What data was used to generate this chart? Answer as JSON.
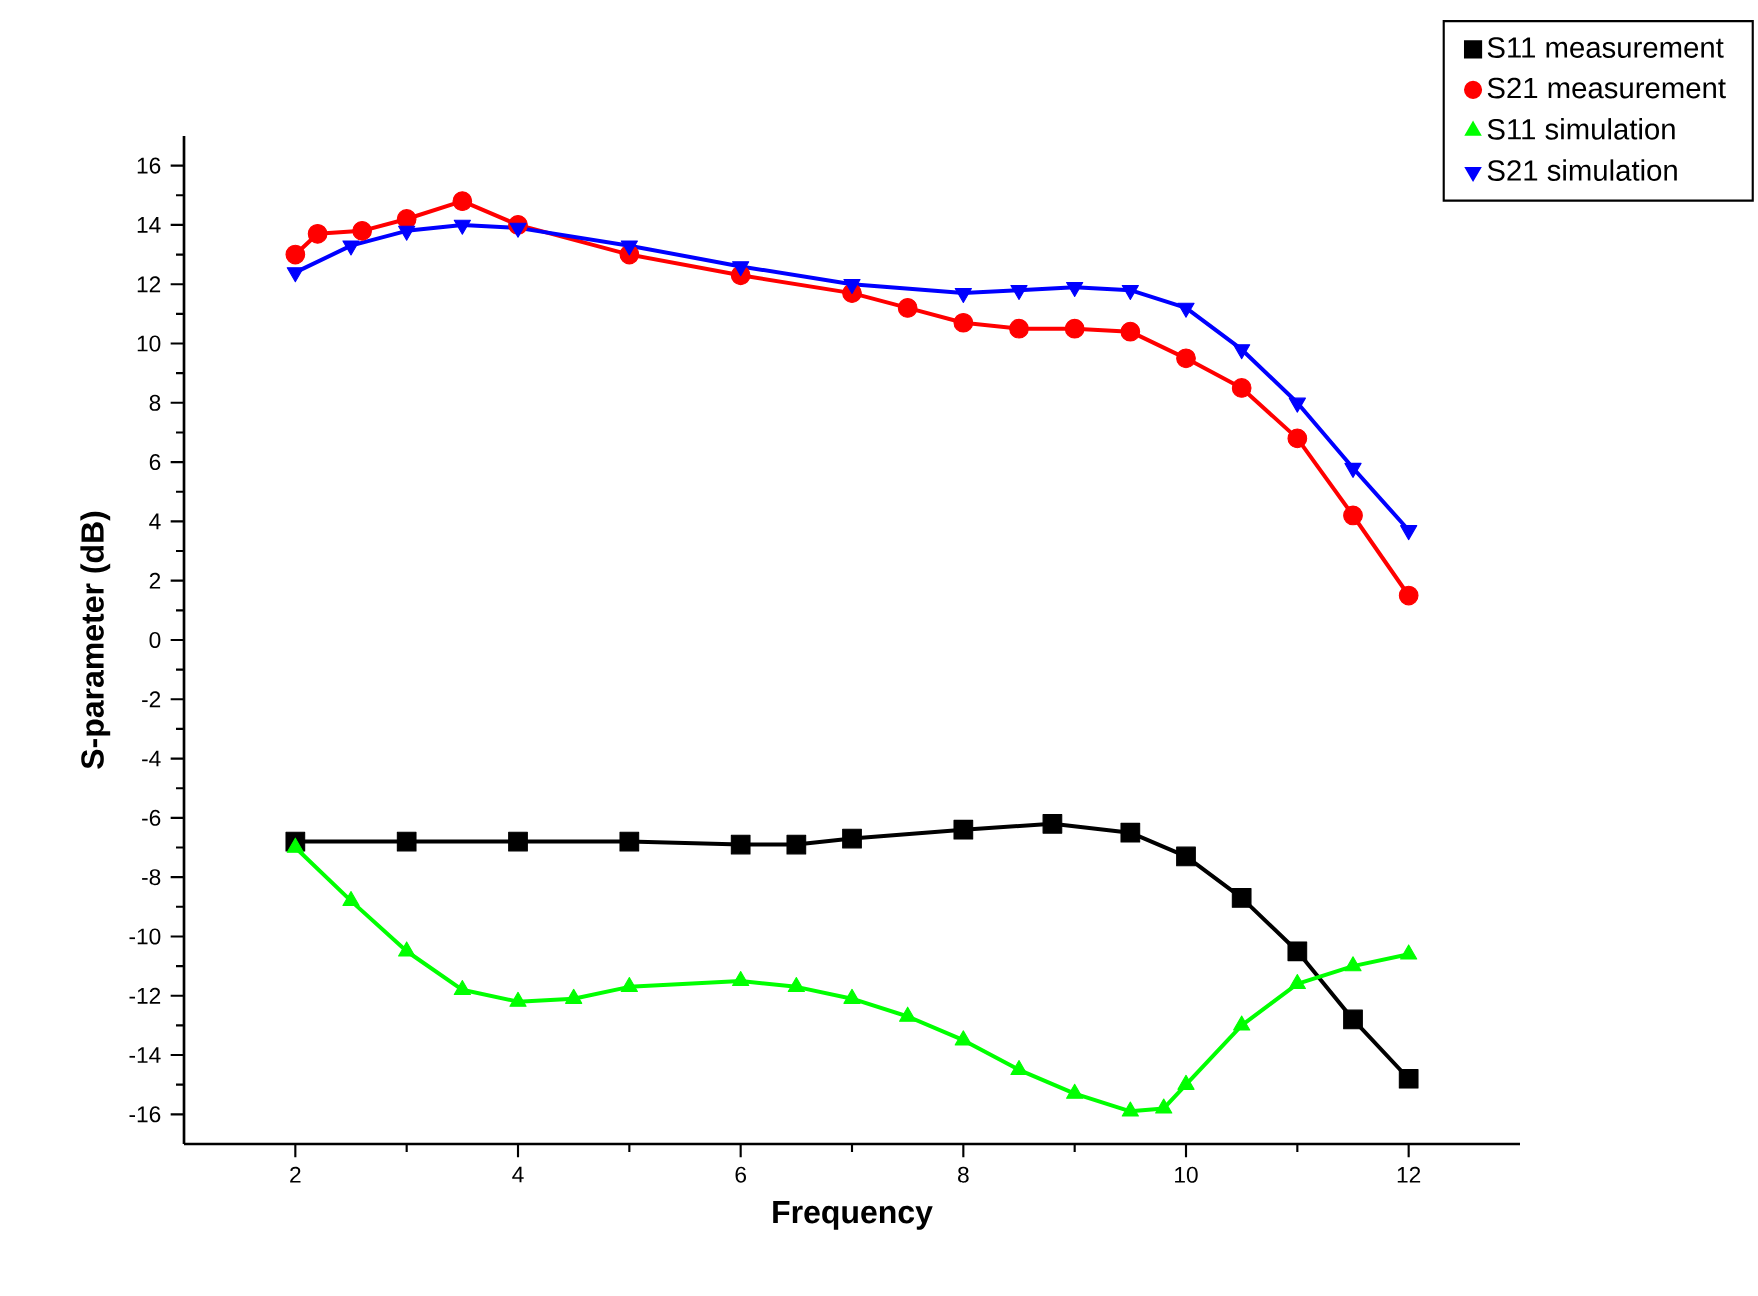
{
  "chart_data": {
    "type": "line",
    "xlabel": "Frequency",
    "ylabel": "S-parameter (dB)",
    "xlim": [
      1,
      13
    ],
    "ylim": [
      -17,
      17
    ],
    "xticks": [
      2,
      4,
      6,
      8,
      10,
      12
    ],
    "yticks": [
      -16,
      -14,
      -12,
      -10,
      -8,
      -6,
      -4,
      -2,
      0,
      2,
      4,
      6,
      8,
      10,
      12,
      14,
      16
    ],
    "grid": false,
    "legend": "top right",
    "series": [
      {
        "name": "S11 measurement",
        "color": "#000000",
        "marker": "square",
        "x": [
          2,
          3,
          4,
          5,
          6,
          6.5,
          7,
          8,
          8.8,
          9.5,
          10,
          10.5,
          11,
          11.5,
          12
        ],
        "values": [
          -6.8,
          -6.8,
          -6.8,
          -6.8,
          -6.9,
          -6.9,
          -6.7,
          -6.4,
          -6.2,
          -6.5,
          -7.3,
          -8.7,
          -10.5,
          -12.8,
          -14.8
        ]
      },
      {
        "name": "S21 measurement",
        "color": "#ff0000",
        "marker": "circle",
        "x": [
          2,
          2.2,
          2.6,
          3,
          3.5,
          4,
          5,
          6,
          7,
          7.5,
          8,
          8.5,
          9,
          9.5,
          10,
          10.5,
          11,
          11.5,
          12
        ],
        "values": [
          13,
          13.7,
          13.8,
          14.2,
          14.8,
          14.0,
          13.0,
          12.3,
          11.7,
          11.2,
          10.7,
          10.5,
          10.5,
          10.4,
          9.5,
          8.5,
          6.8,
          4.2,
          1.5
        ]
      },
      {
        "name": "S11 simulation",
        "color": "#00ff00",
        "marker": "triangle",
        "x": [
          2,
          2.5,
          3,
          3.5,
          4,
          4.5,
          5,
          6,
          6.5,
          7,
          7.5,
          8,
          8.5,
          9,
          9.5,
          9.8,
          10,
          10.5,
          11,
          11.5,
          12
        ],
        "values": [
          -7.0,
          -8.8,
          -10.5,
          -11.8,
          -12.2,
          -12.1,
          -11.7,
          -11.5,
          -11.7,
          -12.1,
          -12.7,
          -13.5,
          -14.5,
          -15.3,
          -15.9,
          -15.8,
          -15.0,
          -13.0,
          -11.6,
          -11.0,
          -10.6
        ]
      },
      {
        "name": "S21 simulation",
        "color": "#0000ff",
        "marker": "triangle-down",
        "x": [
          2,
          2.5,
          3,
          3.5,
          4,
          5,
          6,
          7,
          8,
          8.5,
          9,
          9.5,
          10,
          10.5,
          11,
          11.5,
          12
        ],
        "values": [
          12.4,
          13.3,
          13.8,
          14.0,
          13.9,
          13.3,
          12.6,
          12.0,
          11.7,
          11.8,
          11.9,
          11.8,
          11.2,
          9.8,
          8.0,
          5.8,
          3.7
        ]
      }
    ]
  }
}
